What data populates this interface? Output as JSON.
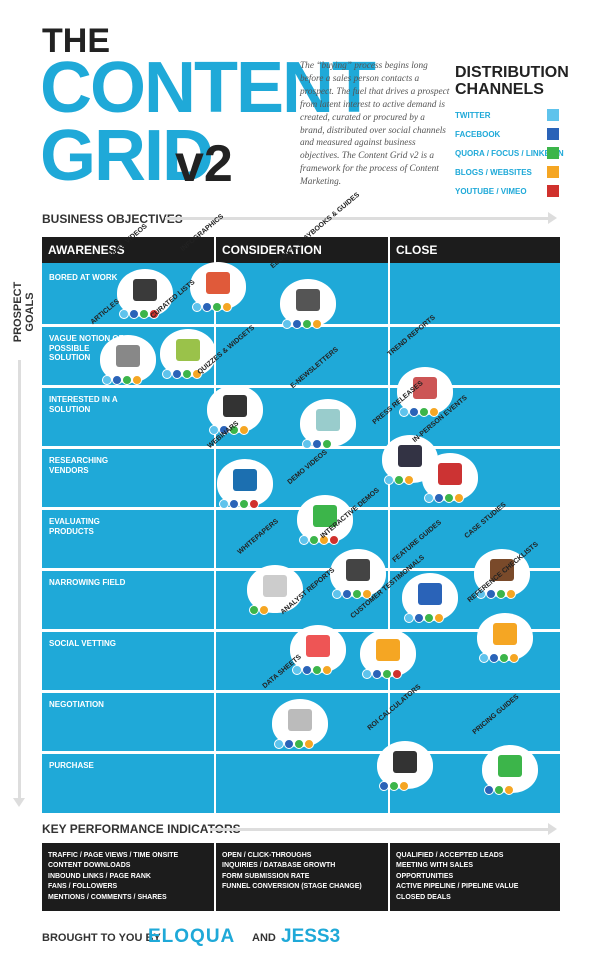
{
  "title": {
    "the": "THE",
    "content": "CONTENT",
    "grid": "GRID",
    "version": "v2"
  },
  "intro": "The “buying” process begins long before a sales person contacts a prospect. The fuel that drives a prospect from latent interest to active demand is created, curated or procured by a brand, distributed over social channels and measured against business objectives. The Content Grid v2 is a framework for the process of Content Marketing.",
  "distribution": {
    "title": "DISTRIBUTION CHANNELS",
    "channels": [
      {
        "label": "TWITTER",
        "color": "#5fc3ec"
      },
      {
        "label": "FACEBOOK",
        "color": "#2a63b8"
      },
      {
        "label": "QUORA / FOCUS / LINKEDIN",
        "color": "#3cb54a"
      },
      {
        "label": "BLOGS / WEBSITES",
        "color": "#f5a623"
      },
      {
        "label": "YOUTUBE / VIMEO",
        "color": "#d0312d"
      }
    ]
  },
  "axes": {
    "business_objectives": "BUSINESS OBJECTIVES",
    "prospect_goals": "PROSPECT GOALS"
  },
  "columns": [
    "AWARENESS",
    "CONSIDERATION",
    "CLOSE"
  ],
  "rows": [
    "BORED AT WORK",
    "VAGUE NOTION OF POSSIBLE SOLUTION",
    "INTERESTED IN A SOLUTION",
    "RESEARCHING VENDORS",
    "EVALUATING PRODUCTS",
    "NARROWING FIELD",
    "SOCIAL VETTING",
    "NEGOTIATION",
    "PURCHASE"
  ],
  "content_types": [
    {
      "label": "VIRAL VIDEOS",
      "icon": "video-icon",
      "color": "#3a3a3a"
    },
    {
      "label": "INFOGRAPHICS",
      "icon": "chart-board-icon",
      "color": "#e05a3a"
    },
    {
      "label": "EBOOKS, PLAYBOOKS & GUIDES",
      "icon": "ebook-icon",
      "color": "#555"
    },
    {
      "label": "ARTICLES",
      "icon": "article-icon",
      "color": "#888"
    },
    {
      "label": "CURATED LISTS",
      "icon": "map-icon",
      "color": "#9ac24a"
    },
    {
      "label": "QUIZZES & WIDGETS",
      "icon": "gears-icon",
      "color": "#333"
    },
    {
      "label": "E-NEWSLETTERS",
      "icon": "newsletter-icon",
      "color": "#9cc"
    },
    {
      "label": "TREND REPORTS",
      "icon": "report-icon",
      "color": "#c55"
    },
    {
      "label": "PRESS RELEASES",
      "icon": "hat-icon",
      "color": "#334"
    },
    {
      "label": "WEBINARS",
      "icon": "webinar-icon",
      "color": "#1c6fb0"
    },
    {
      "label": "IN-PERSON EVENTS",
      "icon": "ticket-icon",
      "color": "#c33"
    },
    {
      "label": "DEMO VIDEOS",
      "icon": "step-icon",
      "color": "#3cb54a"
    },
    {
      "label": "INTERACTIVE DEMOS",
      "icon": "cursor-icon",
      "color": "#444"
    },
    {
      "label": "WHITEPAPERS",
      "icon": "whitepaper-icon",
      "color": "#ccc"
    },
    {
      "label": "FEATURE GUIDES",
      "icon": "puzzle-icon",
      "color": "#2a63b8"
    },
    {
      "label": "CASE STUDIES",
      "icon": "briefcase-icon",
      "color": "#7a4a2a"
    },
    {
      "label": "ANALYST REPORTS",
      "icon": "analyst-icon",
      "color": "#e55"
    },
    {
      "label": "CUSTOMER TESTIMONIALS",
      "icon": "star-icon",
      "color": "#f5a623"
    },
    {
      "label": "REFERENCE CHECKLISTS",
      "icon": "checklist-icon",
      "color": "#f5a623"
    },
    {
      "label": "DATA SHEETS",
      "icon": "datasheet-icon",
      "color": "#bbb"
    },
    {
      "label": "ROI CALCULATORS",
      "icon": "calculator-icon",
      "color": "#333"
    },
    {
      "label": "PRICING GUIDES",
      "icon": "dollar-icon",
      "color": "#3cb54a"
    }
  ],
  "kpi": {
    "title": "KEY PERFORMANCE INDICATORS",
    "awareness": [
      "TRAFFIC / PAGE VIEWS / TIME ONSITE",
      "CONTENT DOWNLOADS",
      "INBOUND LINKS / PAGE RANK",
      "FANS / FOLLOWERS",
      "MENTIONS / COMMENTS / SHARES"
    ],
    "consideration": [
      "OPEN / CLICK-THROUGHS",
      "INQUIRIES / DATABASE GROWTH",
      "FORM SUBMISSION RATE",
      "FUNNEL CONVERSION (STAGE CHANGE)"
    ],
    "close": [
      "QUALIFIED / ACCEPTED LEADS",
      "MEETING WITH SALES",
      "OPPORTUNITIES",
      "ACTIVE PIPELINE / PIPELINE VALUE",
      "CLOSED DEALS"
    ]
  },
  "footer": {
    "brought_by": "BROUGHT TO YOU BY",
    "brand1": "ELOQUA",
    "and": "AND",
    "brand2": "JESS3"
  }
}
